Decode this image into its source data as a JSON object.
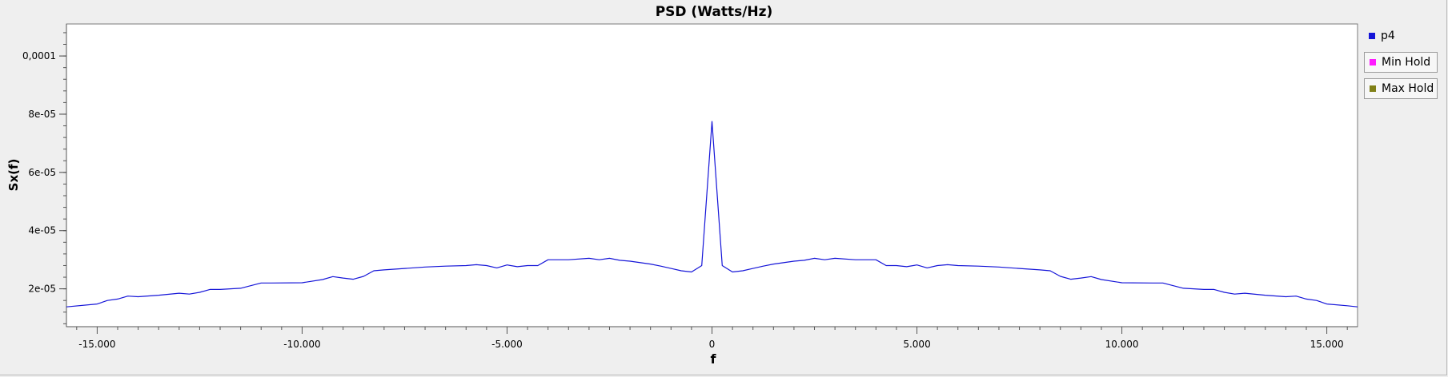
{
  "window": {
    "title": ""
  },
  "chart_data": {
    "type": "line",
    "title": "PSD (Watts/Hz)",
    "xlabel": "f",
    "ylabel": "Sx(f)",
    "xlim": [
      -15750,
      15750
    ],
    "ylim": [
      7e-06,
      0.000111
    ],
    "xticks": [
      -15000,
      -10000,
      -5000,
      0,
      5000,
      10000,
      15000
    ],
    "xtick_labels": [
      "-15.000",
      "-10.000",
      "-5.000",
      "0",
      "5.000",
      "10.000",
      "15.000"
    ],
    "yticks": [
      2e-05,
      4e-05,
      6e-05,
      8e-05,
      0.0001
    ],
    "ytick_labels": [
      "2e-05",
      "4e-05",
      "6e-05",
      "8e-05",
      "0,0001"
    ],
    "grid": false,
    "legend_position": "right",
    "series": [
      {
        "name": "p4",
        "color": "#1515d8",
        "x": [
          -15750,
          -15000,
          -14750,
          -14500,
          -14250,
          -14000,
          -13500,
          -13000,
          -12750,
          -12500,
          -12250,
          -12000,
          -11500,
          -11000,
          -10750,
          -10000,
          -9500,
          -9250,
          -9000,
          -8750,
          -8500,
          -8250,
          -8000,
          -7500,
          -7000,
          -6500,
          -6000,
          -5750,
          -5500,
          -5250,
          -5000,
          -4750,
          -4500,
          -4250,
          -4000,
          -3500,
          -3000,
          -2750,
          -2500,
          -2250,
          -2000,
          -1500,
          -1250,
          -1000,
          -750,
          -500,
          -250,
          0,
          250,
          500,
          750,
          1000,
          1250,
          1500,
          2000,
          2250,
          2500,
          2750,
          3000,
          3500,
          4000,
          4250,
          4500,
          4750,
          5000,
          5250,
          5500,
          5750,
          6000,
          6500,
          7000,
          7500,
          8000,
          8250,
          8500,
          8750,
          9000,
          9250,
          9500,
          10000,
          10750,
          11000,
          11500,
          12000,
          12250,
          12500,
          12750,
          13000,
          13500,
          14000,
          14250,
          14500,
          14750,
          15000,
          15500,
          15750
        ],
        "y": [
          1.38e-05,
          1.48e-05,
          1.6e-05,
          1.65e-05,
          1.75e-05,
          1.73e-05,
          1.78e-05,
          1.85e-05,
          1.82e-05,
          1.88e-05,
          1.98e-05,
          1.98e-05,
          2.02e-05,
          2.2e-05,
          2.2e-05,
          2.21e-05,
          2.32e-05,
          2.42e-05,
          2.37e-05,
          2.33e-05,
          2.43e-05,
          2.62e-05,
          2.65e-05,
          2.7e-05,
          2.75e-05,
          2.78e-05,
          2.8e-05,
          2.83e-05,
          2.8e-05,
          2.72e-05,
          2.82e-05,
          2.76e-05,
          2.8e-05,
          2.8e-05,
          3e-05,
          3e-05,
          3.05e-05,
          3e-05,
          3.05e-05,
          2.98e-05,
          2.95e-05,
          2.85e-05,
          2.78e-05,
          2.7e-05,
          2.62e-05,
          2.58e-05,
          2.8e-05,
          7.75e-05,
          2.8e-05,
          2.58e-05,
          2.62e-05,
          2.7e-05,
          2.78e-05,
          2.85e-05,
          2.95e-05,
          2.98e-05,
          3.05e-05,
          3e-05,
          3.05e-05,
          3e-05,
          3e-05,
          2.8e-05,
          2.8e-05,
          2.76e-05,
          2.82e-05,
          2.72e-05,
          2.8e-05,
          2.83e-05,
          2.8e-05,
          2.78e-05,
          2.75e-05,
          2.7e-05,
          2.65e-05,
          2.62e-05,
          2.43e-05,
          2.33e-05,
          2.37e-05,
          2.42e-05,
          2.32e-05,
          2.21e-05,
          2.2e-05,
          2.2e-05,
          2.02e-05,
          1.98e-05,
          1.98e-05,
          1.88e-05,
          1.82e-05,
          1.85e-05,
          1.78e-05,
          1.73e-05,
          1.75e-05,
          1.65e-05,
          1.6e-05,
          1.48e-05,
          1.42e-05,
          1.38e-05
        ]
      }
    ]
  },
  "legend": {
    "items": [
      {
        "label": "p4",
        "color": "#1515d8",
        "boxed": false
      },
      {
        "label": "Min Hold",
        "color": "#ff1aff",
        "boxed": true
      },
      {
        "label": "Max Hold",
        "color": "#808018",
        "boxed": true
      }
    ]
  }
}
